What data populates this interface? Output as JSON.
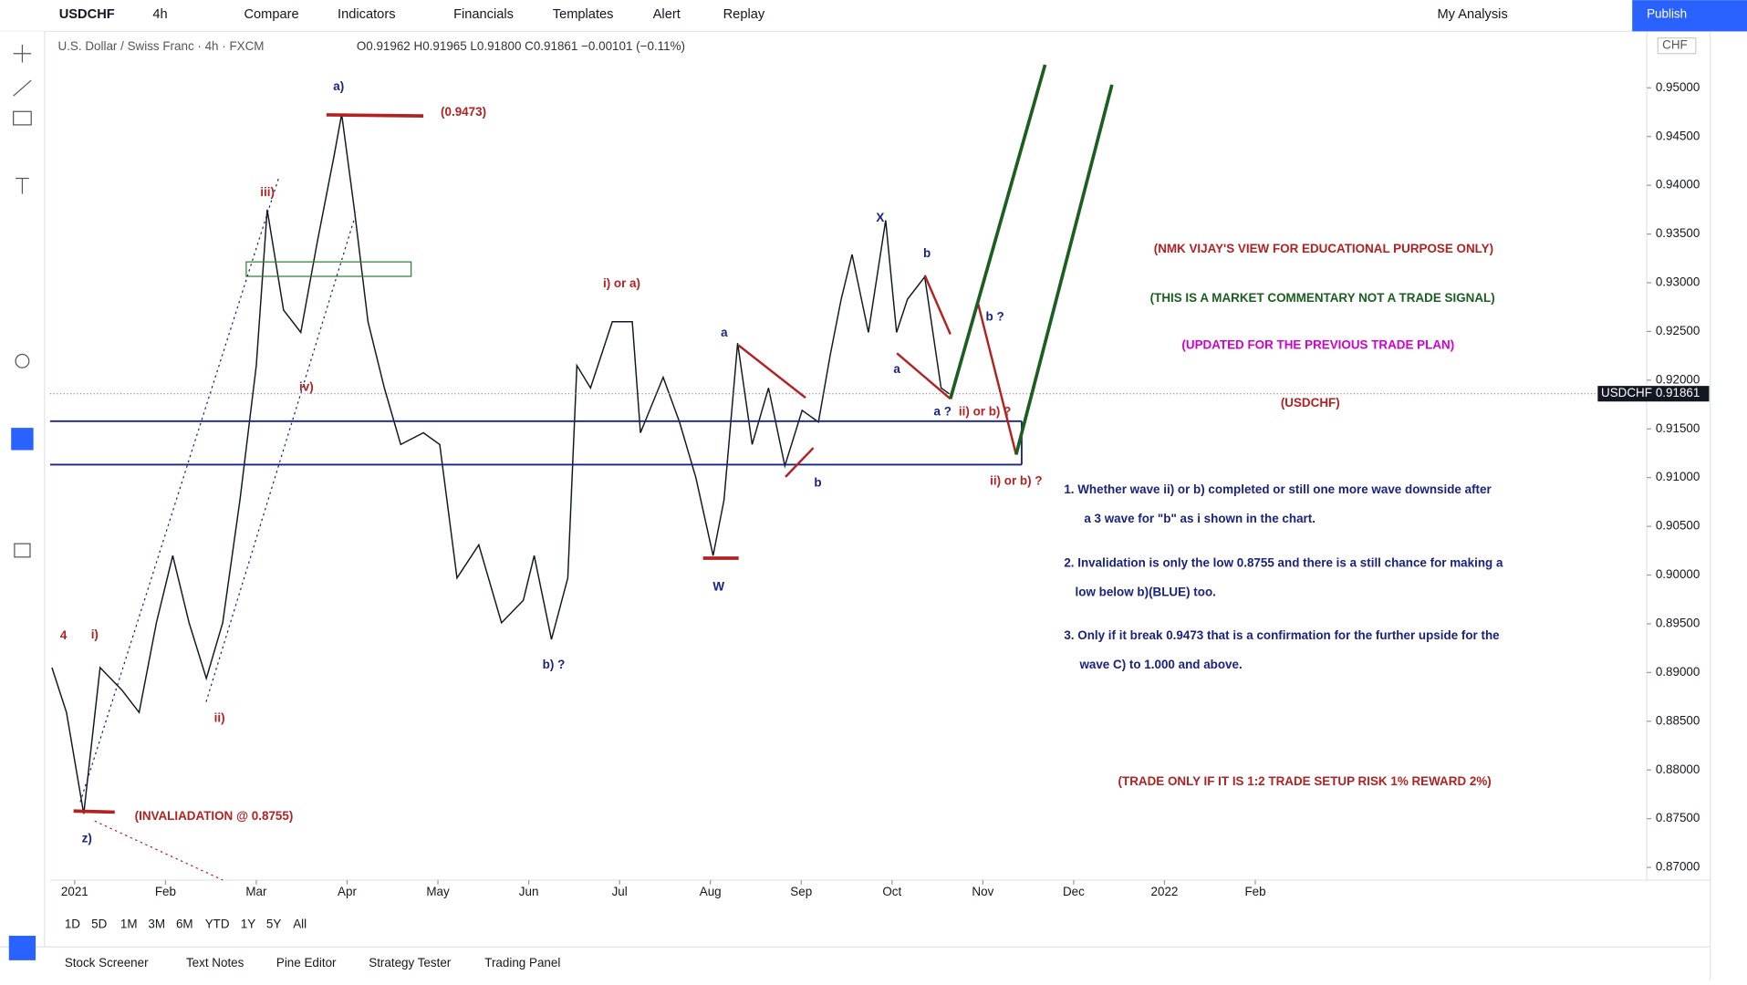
{
  "toolbar": {
    "symbol": "USDCHF",
    "interval": "4h",
    "items": [
      "Compare",
      "Indicators",
      "Financials",
      "Templates",
      "Alert",
      "Replay"
    ],
    "layout": "My Analysis",
    "publish": "Publish"
  },
  "legend": {
    "title": "U.S. Dollar / Swiss Franc · 4h · FXCM",
    "ohlc": "O0.91962 H0.91965 L0.91800 C0.91861 −0.00101 (−0.11%)"
  },
  "currency": "CHF",
  "chart_data": {
    "type": "line",
    "color": "#131722",
    "x": [
      -0.25,
      -0.09,
      0.1,
      0.28,
      0.52,
      0.71,
      0.9,
      1.08,
      1.26,
      1.45,
      1.63,
      1.82,
      2.0,
      2.12,
      2.3,
      2.49,
      2.67,
      2.86,
      2.94,
      3.08,
      3.23,
      3.41,
      3.59,
      3.84,
      4.02,
      4.21,
      4.45,
      4.7,
      4.94,
      5.06,
      5.25,
      5.43,
      5.53,
      5.68,
      5.92,
      6.14,
      6.23,
      6.48,
      6.66,
      6.84,
      7.03,
      7.15,
      7.3,
      7.46,
      7.64,
      7.82,
      8.01,
      8.19,
      8.32,
      8.44,
      8.56,
      8.74,
      8.93,
      9.05,
      9.17,
      9.36,
      9.54,
      9.63
    ],
    "values": [
      0.8905,
      0.8859,
      0.8755,
      0.8905,
      0.8882,
      0.8859,
      0.8951,
      0.902,
      0.8951,
      0.8894,
      0.8951,
      0.9077,
      0.9215,
      0.9375,
      0.9272,
      0.9249,
      0.9341,
      0.9432,
      0.9473,
      0.9375,
      0.926,
      0.9192,
      0.9134,
      0.9146,
      0.9134,
      0.8997,
      0.9031,
      0.8951,
      0.8974,
      0.902,
      0.8934,
      0.8997,
      0.9215,
      0.9192,
      0.926,
      0.926,
      0.9146,
      0.9203,
      0.9157,
      0.91,
      0.902,
      0.9077,
      0.9238,
      0.9134,
      0.9192,
      0.9112,
      0.9169,
      0.9157,
      0.9226,
      0.9283,
      0.9329,
      0.9249,
      0.9364,
      0.9249,
      0.9283,
      0.9306,
      0.9192,
      0.9186
    ],
    "xlim": [
      -0.27,
      17.31
    ],
    "ylim": [
      0.8687,
      0.9558
    ],
    "xticks": [
      {
        "value": 0,
        "label": "2021"
      },
      {
        "value": 1,
        "label": "Feb"
      },
      {
        "value": 2,
        "label": "Mar"
      },
      {
        "value": 3,
        "label": "Apr"
      },
      {
        "value": 4,
        "label": "May"
      },
      {
        "value": 5,
        "label": "Jun"
      },
      {
        "value": 6,
        "label": "Jul"
      },
      {
        "value": 7,
        "label": "Aug"
      },
      {
        "value": 8,
        "label": "Sep"
      },
      {
        "value": 9,
        "label": "Oct"
      },
      {
        "value": 10,
        "label": "Nov"
      },
      {
        "value": 11,
        "label": "Dec"
      },
      {
        "value": 12,
        "label": "2022"
      },
      {
        "value": 13,
        "label": "Feb"
      }
    ],
    "yticks": [
      {
        "value": 0.87,
        "label": "0.87000"
      },
      {
        "value": 0.875,
        "label": "0.87500"
      },
      {
        "value": 0.88,
        "label": "0.88000"
      },
      {
        "value": 0.885,
        "label": "0.88500"
      },
      {
        "value": 0.89,
        "label": "0.89000"
      },
      {
        "value": 0.895,
        "label": "0.89500"
      },
      {
        "value": 0.9,
        "label": "0.90000"
      },
      {
        "value": 0.905,
        "label": "0.90500"
      },
      {
        "value": 0.91,
        "label": "0.91000"
      },
      {
        "value": 0.915,
        "label": "0.91500"
      },
      {
        "value": 0.92,
        "label": "0.92000"
      },
      {
        "value": 0.925,
        "label": "0.92500"
      },
      {
        "value": 0.93,
        "label": "0.93000"
      },
      {
        "value": 0.935,
        "label": "0.93500"
      },
      {
        "value": 0.94,
        "label": "0.94000"
      },
      {
        "value": 0.945,
        "label": "0.94500"
      },
      {
        "value": 0.95,
        "label": "0.95000"
      }
    ],
    "last_price": {
      "symbol": "USDCHF",
      "value": 0.91861
    }
  },
  "annotations": [
    "a)",
    "(0.9473)",
    "iii)",
    "iv)",
    "i) or a)",
    "a",
    "X",
    "b",
    "a",
    "b ?",
    "a ?",
    "ii) or b) ?",
    "b",
    "ii) or b) ?",
    "W",
    "b) ?",
    "4",
    "i)",
    "ii)",
    "(INVALIADATION @ 0.8755)",
    "z)"
  ],
  "commentary": [
    "(NMK VIJAY'S VIEW FOR EDUCATIONAL PURPOSE ONLY)",
    "(THIS IS A MARKET COMMENTARY NOT A TRADE SIGNAL)",
    "(UPDATED FOR THE PREVIOUS TRADE PLAN)",
    "(USDCHF)",
    "1. Whether wave ii) or b) completed or still one more wave downside after",
    "a 3 wave for \"b\"  as i shown in the chart.",
    "2. Invalidation is only the low 0.8755 and there is a still chance for making a",
    "low below b)(BLUE) too.",
    "3. Only if it break 0.9473 that is a confirmation for the further upside for the",
    "wave C) to 1.000 and above.",
    "(TRADE ONLY IF IT IS 1:2 TRADE SETUP RISK 1% REWARD 2%)"
  ],
  "time_ranges": [
    "1D",
    "5D",
    "1M",
    "3M",
    "6M",
    "YTD",
    "1Y",
    "5Y",
    "All"
  ],
  "bottom_tabs": [
    "Stock Screener",
    "Text Notes",
    "Pine Editor",
    "Strategy Tester",
    "Trading Panel"
  ]
}
